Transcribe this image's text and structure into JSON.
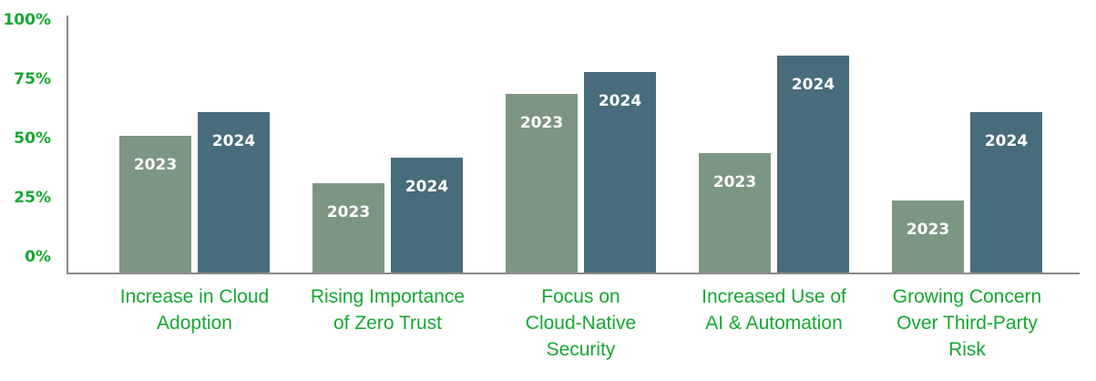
{
  "chart_data": {
    "type": "bar",
    "title": "",
    "xlabel": "",
    "ylabel": "",
    "ylim": [
      0,
      100
    ],
    "y_ticks": [
      "0%",
      "25%",
      "50%",
      "75%",
      "100%"
    ],
    "grid": false,
    "legend": "none (series labeled inside bars)",
    "categories": [
      "Increase in Cloud Adoption",
      "Rising Importance of Zero Trust",
      "Focus on Cloud-Native Security",
      "Increased Use of AI & Automation",
      "Growing Concern Over Third-Party Risk"
    ],
    "category_lines": [
      [
        "Increase in Cloud",
        "Adoption"
      ],
      [
        "Rising Importance",
        "of Zero Trust"
      ],
      [
        "Focus on",
        "Cloud-Native",
        "Security"
      ],
      [
        "Increased Use of",
        "AI & Automation"
      ],
      [
        "Growing Concern",
        "Over Third-Party",
        "Risk"
      ]
    ],
    "series": [
      {
        "name": "2023",
        "color": "#7d9682",
        "values": [
          51,
          31,
          69,
          44,
          24
        ]
      },
      {
        "name": "2024",
        "color": "#476c7c",
        "values": [
          61,
          42,
          78,
          85,
          61
        ]
      }
    ]
  },
  "colors": {
    "axis_text": "#14a830",
    "axis_line": "#8a8a8a",
    "bar_label": "#ffffff"
  }
}
